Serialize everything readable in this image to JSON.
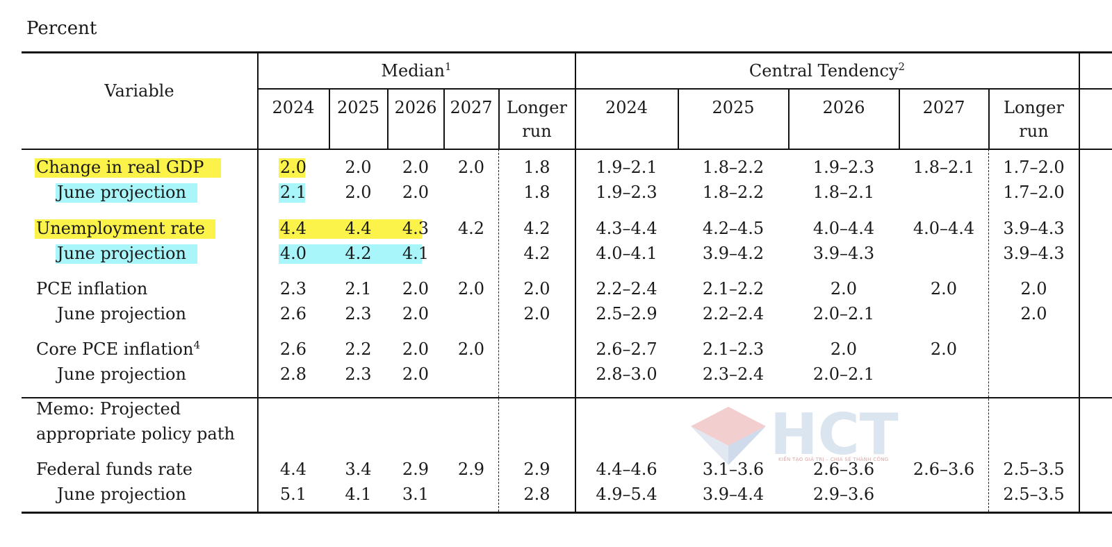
{
  "caption": "Percent",
  "header": {
    "variable": "Variable",
    "median": "Median",
    "median_note": "1",
    "central": "Central Tendency",
    "central_note": "2",
    "years": [
      "2024",
      "2025",
      "2026",
      "2027"
    ],
    "longer_1": "Longer",
    "longer_2": "run"
  },
  "rows": [
    {
      "label": "Change in real GDP",
      "median": [
        "2.0",
        "2.0",
        "2.0",
        "2.0",
        "1.8"
      ],
      "central": [
        "1.9–2.1",
        "1.8–2.2",
        "1.9–2.3",
        "1.8–2.1",
        "1.7–2.0"
      ]
    },
    {
      "label": "June projection",
      "median": [
        "2.1",
        "2.0",
        "2.0",
        "",
        "1.8"
      ],
      "central": [
        "1.9–2.3",
        "1.8–2.2",
        "1.8–2.1",
        "",
        "1.7–2.0"
      ]
    },
    {
      "label": "Unemployment rate",
      "median": [
        "4.4",
        "4.4",
        "4.3",
        "4.2",
        "4.2"
      ],
      "central": [
        "4.3–4.4",
        "4.2–4.5",
        "4.0–4.4",
        "4.0–4.4",
        "3.9–4.3"
      ]
    },
    {
      "label": "June projection",
      "median": [
        "4.0",
        "4.2",
        "4.1",
        "",
        "4.2"
      ],
      "central": [
        "4.0–4.1",
        "3.9–4.2",
        "3.9–4.3",
        "",
        "3.9–4.3"
      ]
    },
    {
      "label": "PCE inflation",
      "median": [
        "2.3",
        "2.1",
        "2.0",
        "2.0",
        "2.0"
      ],
      "central": [
        "2.2–2.4",
        "2.1–2.2",
        "2.0",
        "2.0",
        "2.0"
      ]
    },
    {
      "label": "June projection",
      "median": [
        "2.6",
        "2.3",
        "2.0",
        "",
        "2.0"
      ],
      "central": [
        "2.5–2.9",
        "2.2–2.4",
        "2.0–2.1",
        "",
        "2.0"
      ]
    },
    {
      "label": "Core PCE inflation",
      "note": "4",
      "median": [
        "2.6",
        "2.2",
        "2.0",
        "2.0",
        ""
      ],
      "central": [
        "2.6–2.7",
        "2.1–2.3",
        "2.0",
        "2.0",
        ""
      ]
    },
    {
      "label": "June projection",
      "median": [
        "2.8",
        "2.3",
        "2.0",
        "",
        ""
      ],
      "central": [
        "2.8–3.0",
        "2.3–2.4",
        "2.0–2.1",
        "",
        ""
      ]
    }
  ],
  "memo": {
    "line1": "Memo: Projected",
    "line2": "appropriate policy path"
  },
  "policy_rows": [
    {
      "label": "Federal funds rate",
      "median": [
        "4.4",
        "3.4",
        "2.9",
        "2.9",
        "2.9"
      ],
      "central": [
        "4.4–4.6",
        "3.1–3.6",
        "2.6–3.6",
        "2.6–3.6",
        "2.5–3.5"
      ]
    },
    {
      "label": "June projection",
      "median": [
        "5.1",
        "4.1",
        "3.1",
        "",
        "2.8"
      ],
      "central": [
        "4.9–5.4",
        "3.9–4.4",
        "2.9–3.6",
        "",
        "2.5–3.5"
      ]
    }
  ],
  "watermark": {
    "text": "HCT",
    "tagline": "KIẾN TẠO GIÁ TRỊ – CHIA SẺ THÀNH CÔNG"
  },
  "colors": {
    "highlight_yellow": "#fbf34a",
    "highlight_cyan": "#a8f6f9"
  }
}
